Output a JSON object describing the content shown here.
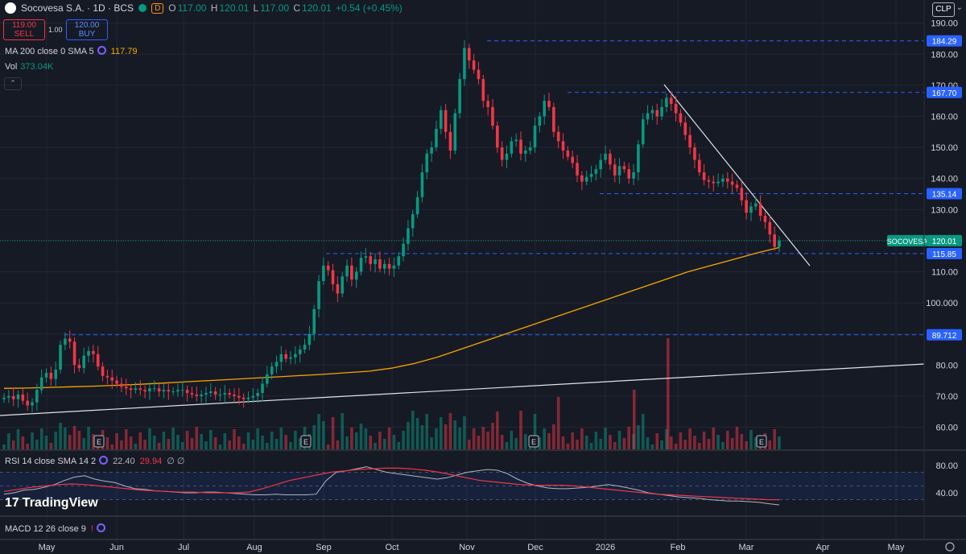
{
  "header": {
    "title": "Socovesa S.A. · 1D · BCS",
    "badge": "D",
    "open_label": "O",
    "open": "117.00",
    "high_label": "H",
    "high": "120.01",
    "low_label": "L",
    "low": "117.00",
    "close_label": "C",
    "close": "120.01",
    "change": "+0.54 (+0.45%)"
  },
  "trade": {
    "sell_price": "119.00",
    "sell_label": "SELL",
    "spread": "1.00",
    "buy_price": "120.00",
    "buy_label": "BUY"
  },
  "indicators": {
    "ma_label": "MA 200 close 0 SMA 5",
    "ma_value": "117.79",
    "vol_label": "Vol",
    "vol_value": "373.04K",
    "rsi_label": "RSI 14 close SMA 14 2",
    "rsi_value": "22.40",
    "rsi_sma_value": "29.94",
    "rsi_extra": "∅ ∅",
    "macd_label": "MACD 12 26 close 9"
  },
  "currency": "CLP",
  "brand": "TradingView",
  "colors": {
    "up": "#089981",
    "down": "#f23645",
    "ma": "#f7a600",
    "rsi": "#b2b5be",
    "rsi_sma": "#f23645",
    "level": "#2962ff",
    "background": "#161a25"
  },
  "chart_data": {
    "type": "candlestick",
    "symbol": "SOCOVESA",
    "y_ticks": [
      60,
      70,
      80,
      90,
      100,
      110,
      120,
      130,
      140,
      150,
      160,
      170,
      180,
      190
    ],
    "y_tick_labels": [
      "60.00",
      "70.00",
      "80.00",
      "90.00",
      "100.000",
      "110.00",
      "120.00",
      "130.00",
      "140.00",
      "150.00",
      "160.00",
      "170.00",
      "180.00",
      "190.00"
    ],
    "x_ticks": [
      "May",
      "Jun",
      "Jul",
      "Aug",
      "Sep",
      "Oct",
      "Nov",
      "Dec",
      "2026",
      "Feb",
      "Mar",
      "Apr",
      "May"
    ],
    "levels": [
      184.29,
      167.7,
      135.14,
      115.85,
      89.712
    ],
    "level_labels": [
      "184.29",
      "167.70",
      "135.14",
      "115.85",
      "89.712"
    ],
    "last_price": 120.01,
    "last_price_label": "120.01",
    "earnings_marker": "E",
    "rsi_ticks": [
      40,
      80
    ],
    "rsi_tick_labels": [
      "40.00",
      "80.00"
    ],
    "closes": [
      69.5,
      70.0,
      69.0,
      70.5,
      68.5,
      67.0,
      68.0,
      72.0,
      76.0,
      77.5,
      75.5,
      78.5,
      86.5,
      88.5,
      87.5,
      80.0,
      79.0,
      83.0,
      84.5,
      83.5,
      79.5,
      76.5,
      76.0,
      75.0,
      74.0,
      73.0,
      72.5,
      72.0,
      72.5,
      72.0,
      71.5,
      72.5,
      72.5,
      71.5,
      72.0,
      71.5,
      71.5,
      72.0,
      72.0,
      71.0,
      70.5,
      70.0,
      70.5,
      71.0,
      71.5,
      70.5,
      70.5,
      71.0,
      70.5,
      70.0,
      69.5,
      69.0,
      69.5,
      70.0,
      71.0,
      74.0,
      77.0,
      79.5,
      81.0,
      83.5,
      82.0,
      82.5,
      83.5,
      85.0,
      86.5,
      90.0,
      98.0,
      107.0,
      112.0,
      110.5,
      106.0,
      103.0,
      108.5,
      112.0,
      107.5,
      110.0,
      114.5,
      115.0,
      112.5,
      114.0,
      111.0,
      112.5,
      111.0,
      112.0,
      115.0,
      119.0,
      124.0,
      128.5,
      134.0,
      142.0,
      148.0,
      150.0,
      156.0,
      162.0,
      155.0,
      149.0,
      161.0,
      172.0,
      182.0,
      178.0,
      175.0,
      172.0,
      165.0,
      163.0,
      157.0,
      150.0,
      146.0,
      148.0,
      152.0,
      152.5,
      148.0,
      149.0,
      150.0,
      157.0,
      160.0,
      165.0,
      163.0,
      155.0,
      152.0,
      149.0,
      147.0,
      145.0,
      141.0,
      139.0,
      140.5,
      141.5,
      143.0,
      146.0,
      148.0,
      144.5,
      141.0,
      144.0,
      143.0,
      140.0,
      142.0,
      151.0,
      159.0,
      161.0,
      162.0,
      160.0,
      163.0,
      166.0,
      164.0,
      161.0,
      158.0,
      154.0,
      150.0,
      146.0,
      142.0,
      139.5,
      139.0,
      138.5,
      139.0,
      140.0,
      139.0,
      138.0,
      137.0,
      133.0,
      129.0,
      131.0,
      132.0,
      128.0,
      126.0,
      122.0,
      118.0,
      120.01
    ],
    "ma200": [
      72.5,
      72.6,
      72.8,
      73.0,
      73.2,
      73.5,
      73.8,
      74.2,
      74.6,
      75.0,
      75.4,
      75.8,
      76.2,
      76.6,
      77.0,
      77.5,
      78.0,
      79.0,
      80.5,
      82.5,
      85.0,
      87.5,
      90.0,
      92.5,
      95.0,
      97.5,
      100.0,
      102.5,
      105.0,
      107.5,
      110.0,
      112.0,
      114.0,
      116.0,
      117.79
    ],
    "rsi": [
      38,
      40,
      44,
      45,
      48,
      52,
      58,
      63,
      65,
      60,
      57,
      55,
      50,
      46,
      45,
      43,
      42,
      41,
      40,
      40,
      41,
      41,
      40,
      39,
      38,
      37,
      37,
      38,
      37,
      37,
      37,
      38,
      58,
      70,
      72,
      75,
      78,
      74,
      70,
      68,
      66,
      64,
      62,
      60,
      62,
      66,
      70,
      72,
      74,
      73,
      68,
      60,
      54,
      50,
      47,
      46,
      46,
      47,
      48,
      50,
      52,
      50,
      47,
      44,
      40,
      38,
      36,
      34,
      33,
      32,
      30,
      29,
      28,
      28,
      27,
      26,
      24,
      22.4
    ],
    "rsi_sma": [
      42,
      45,
      48,
      50,
      52,
      53,
      52,
      50,
      48,
      46,
      44,
      43,
      42,
      41,
      41,
      40,
      40,
      40,
      41,
      46,
      52,
      58,
      62,
      66,
      70,
      72,
      74,
      75,
      76,
      76,
      75,
      73,
      70,
      66,
      62,
      58,
      56,
      54,
      52,
      51,
      51,
      51,
      50,
      48,
      46,
      44,
      42,
      40,
      38,
      37,
      36,
      35,
      34,
      33,
      32,
      31,
      30,
      29.94
    ]
  }
}
